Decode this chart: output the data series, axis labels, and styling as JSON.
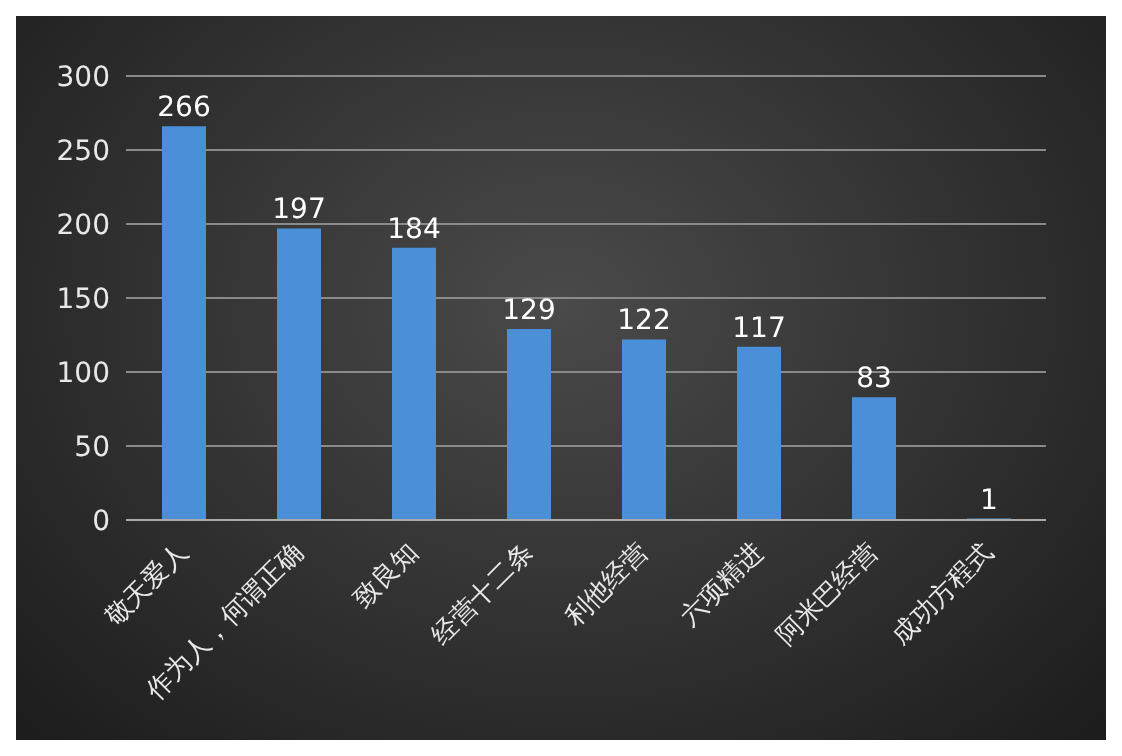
{
  "chart_data": {
    "type": "bar",
    "categories": [
      "敬天爱人",
      "作为人，何谓正确",
      "致良知",
      "经营十二条",
      "利他经营",
      "六项精进",
      "阿米巴经营",
      "成功方程式"
    ],
    "values": [
      266,
      197,
      184,
      129,
      122,
      117,
      83,
      1
    ],
    "color": "#4a8fd8",
    "ylim": [
      0,
      300
    ],
    "yticks": [
      0,
      50,
      100,
      150,
      200,
      250,
      300
    ],
    "grid": "y",
    "data_labels": true
  }
}
